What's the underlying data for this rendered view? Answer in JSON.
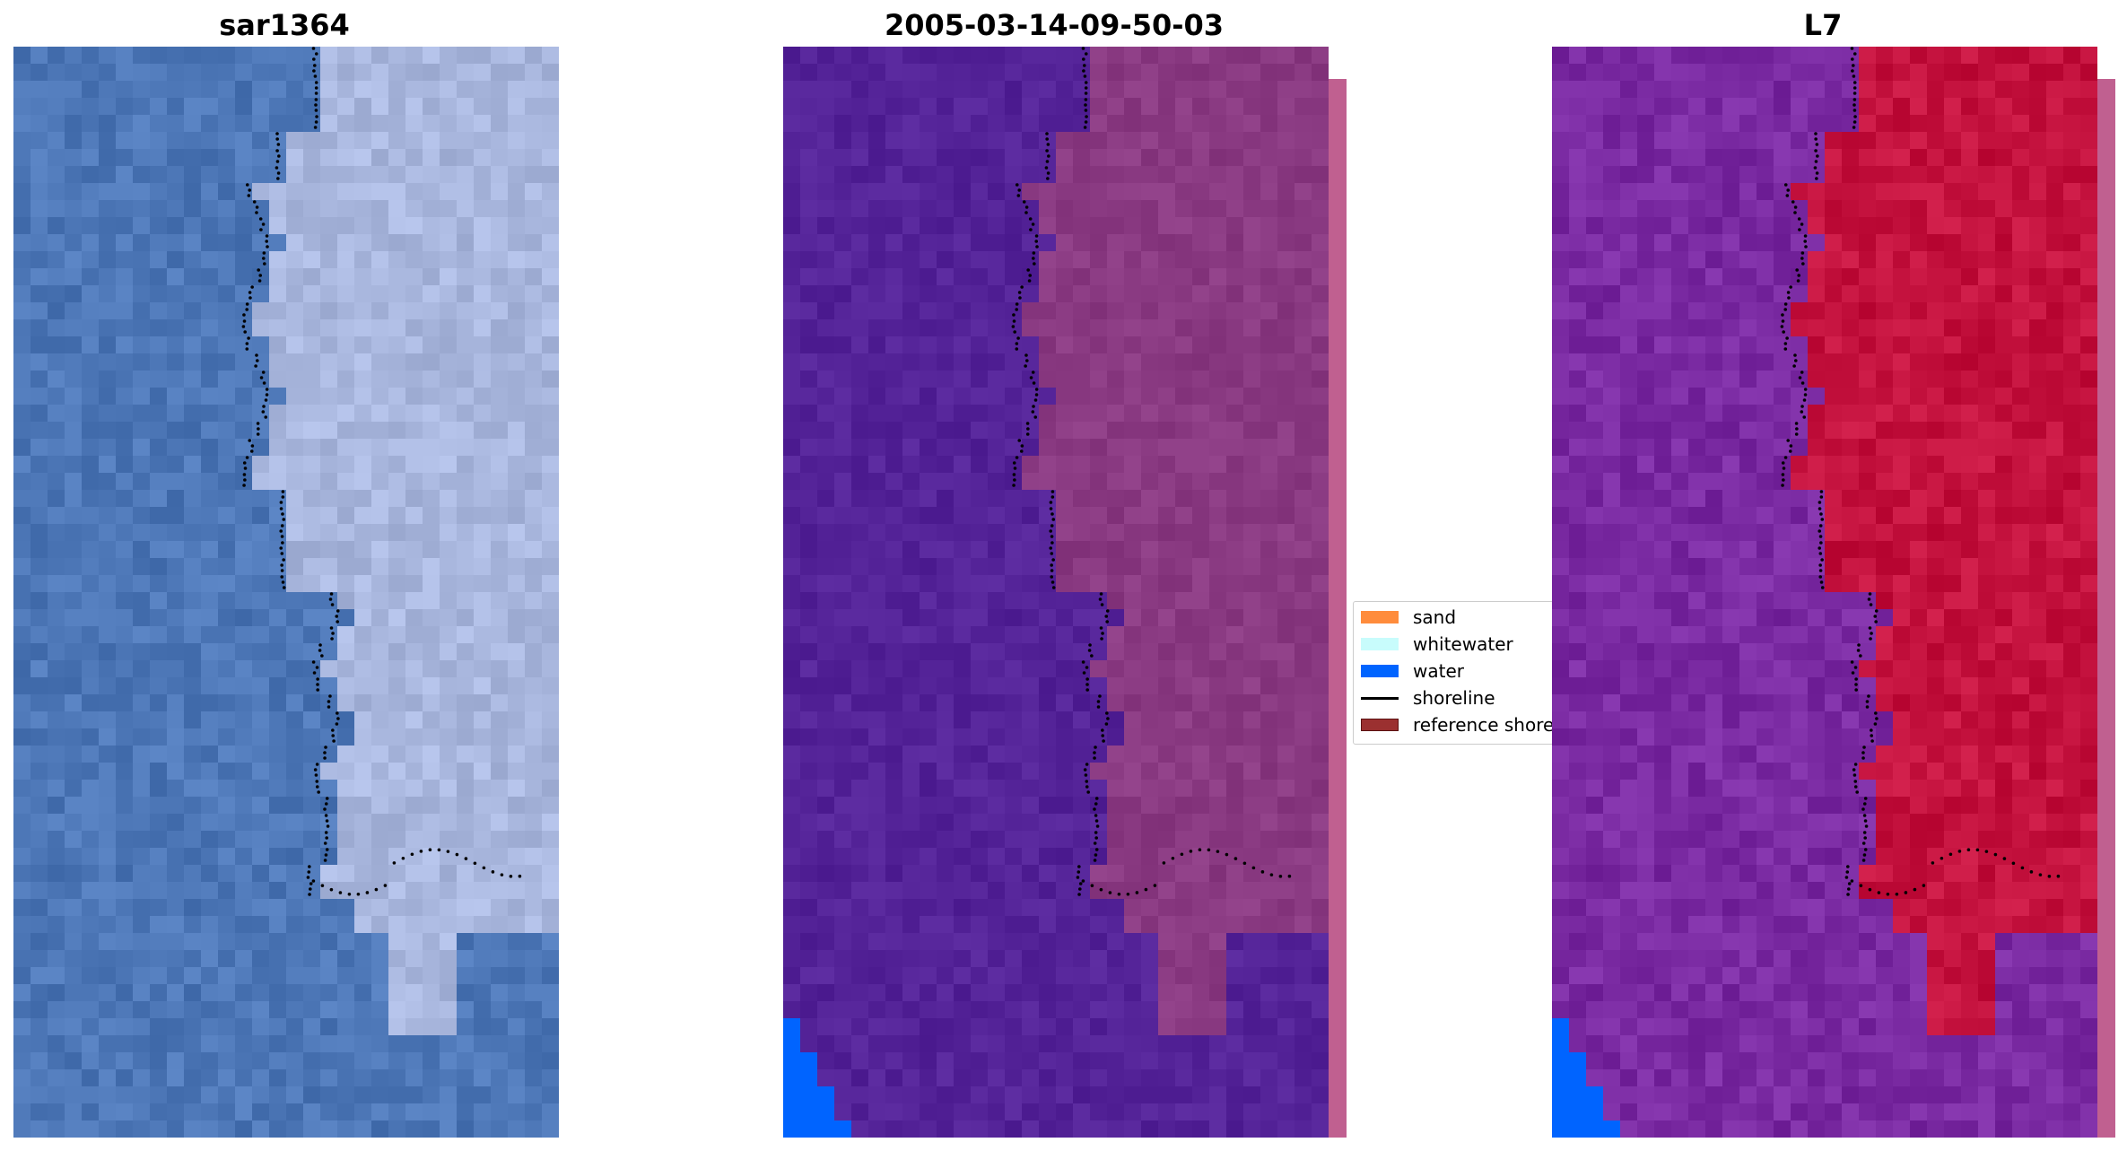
{
  "panels": [
    {
      "id": "rgb",
      "title": "sar1364"
    },
    {
      "id": "classified",
      "title": "2005-03-14-09-50-03"
    },
    {
      "id": "index",
      "title": "L7"
    }
  ],
  "legend": {
    "items": [
      {
        "label": "sand",
        "kind": "patch",
        "color": "#ff8c3c"
      },
      {
        "label": "whitewater",
        "kind": "patch",
        "color": "#c8fcfc"
      },
      {
        "label": "water",
        "kind": "patch",
        "color": "#0064ff"
      },
      {
        "label": "shoreline",
        "kind": "line",
        "color": "#000000"
      },
      {
        "label": "reference shoreline",
        "kind": "patch",
        "color": "#9b3030"
      }
    ]
  },
  "colors": {
    "water_rgb": "#4d77b7",
    "land_rgb": "#a9b7de",
    "water_class": "#542398",
    "land_class": "#8a3a82",
    "water_index": "#7a2aa2",
    "land_index": "#c4123e",
    "water_patch": "#0064ff",
    "shoreline_dots": "#000000"
  }
}
